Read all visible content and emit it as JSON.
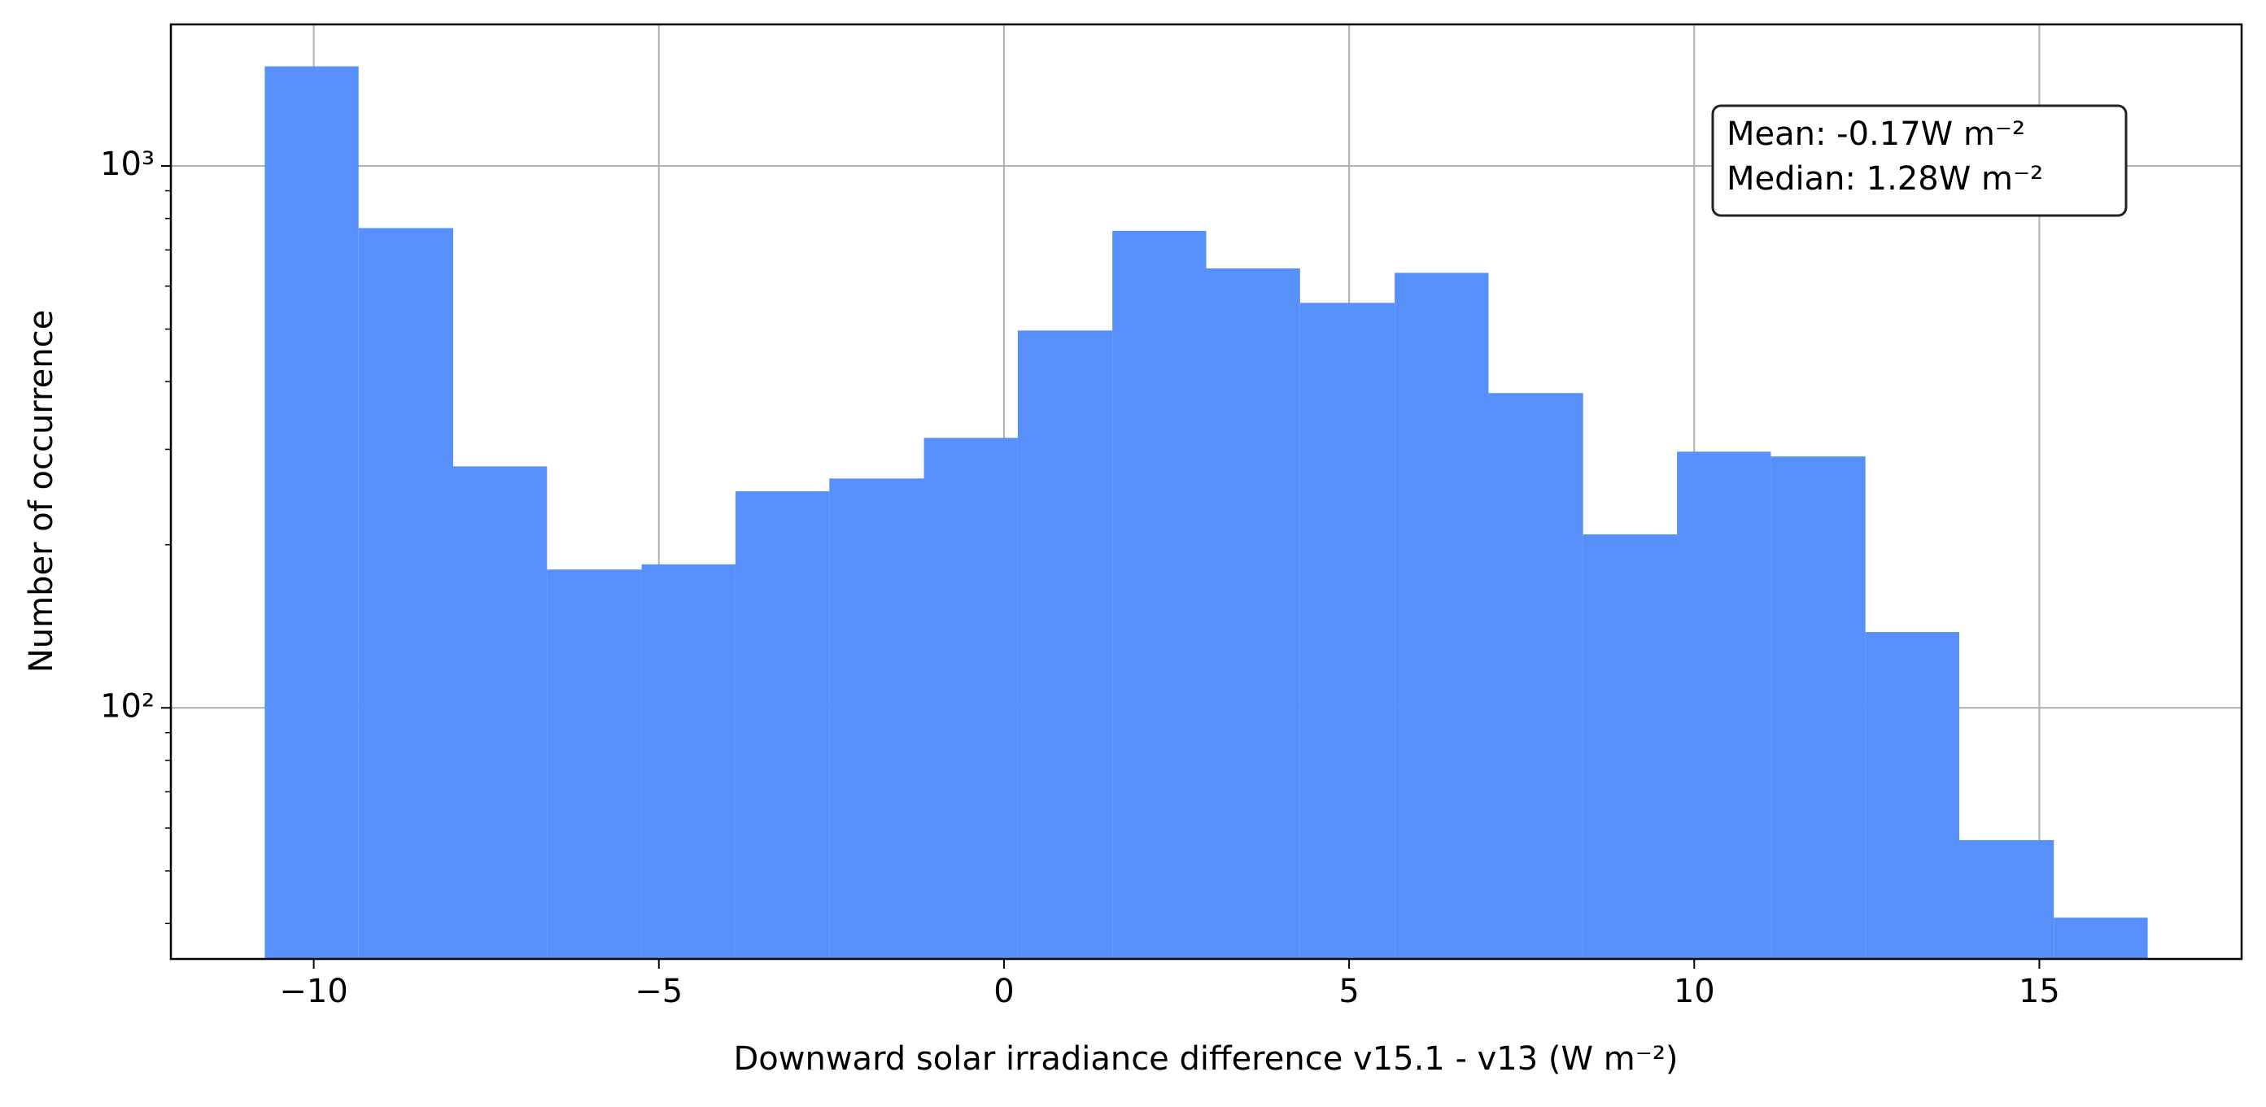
{
  "chart_data": {
    "type": "histogram",
    "xlabel": "Downward solar irradiance difference v15.1 - v13 (W m⁻²)",
    "ylabel": "Number of occurrence",
    "annotation": [
      "Mean: -0.17W m⁻²",
      "Median: 1.28W m⁻²"
    ],
    "bins": [
      -10.71,
      -9.35,
      -7.98,
      -6.62,
      -5.25,
      -3.89,
      -2.53,
      -1.16,
      0.2,
      1.57,
      2.93,
      4.29,
      5.66,
      7.02,
      8.39,
      9.75,
      11.11,
      12.48,
      13.84,
      15.21,
      16.57
    ],
    "values": [
      1527,
      768,
      279,
      180,
      184,
      251,
      265,
      315,
      497,
      759,
      647,
      559,
      635,
      381,
      209,
      297,
      291,
      138,
      57,
      41
    ],
    "color": "#5790fb",
    "xlim": [
      -12.07,
      17.93
    ],
    "xticks": [
      {
        "value": -10,
        "label": "−10"
      },
      {
        "value": -5,
        "label": "−5"
      },
      0,
      5,
      10,
      15
    ],
    "ylim": [
      34.4,
      1825
    ],
    "yscale": "log",
    "yticks": [
      {
        "value": 100,
        "label": "10²"
      },
      {
        "value": 1000,
        "label": "10³"
      }
    ],
    "yminorticks": [
      40,
      50,
      60,
      70,
      80,
      90,
      200,
      300,
      400,
      500,
      600,
      700,
      800,
      900
    ],
    "grid": true
  }
}
